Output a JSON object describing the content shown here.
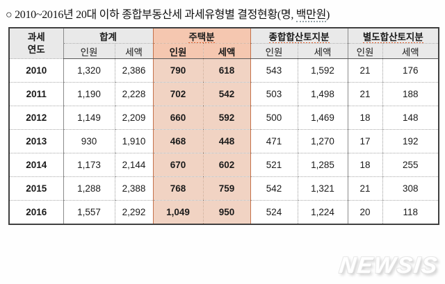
{
  "title": {
    "prefix": "○ 2010~2016년 20대 이하 종합부동산세 과세유형별 결정현황(명, ",
    "underlined": "백만원",
    "suffix": ")"
  },
  "watermark": "NEWSIS",
  "colors": {
    "highlight_header": "#f5c7b0",
    "highlight_cell": "#f1d3c3",
    "highlight_border": "#c4714a",
    "header_gray": "#e9e9e9",
    "table_border": "#3f3f3f",
    "spellcheck_red": "#dd5a28"
  },
  "table": {
    "year_header_line1": "과세",
    "year_header_line2": "연도",
    "groups": [
      {
        "label": "합계",
        "highlighted": false
      },
      {
        "label": "주택분",
        "highlighted": true
      },
      {
        "label": "종합합산토지분",
        "highlighted": false
      },
      {
        "label": "별도합산토지분",
        "highlighted": false
      }
    ],
    "subheaders": [
      "인원",
      "세액"
    ],
    "rows": [
      {
        "year": "2010",
        "values": [
          "1,320",
          "2,386",
          "790",
          "618",
          "543",
          "1,592",
          "21",
          "176"
        ]
      },
      {
        "year": "2011",
        "values": [
          "1,190",
          "2,228",
          "702",
          "542",
          "503",
          "1,498",
          "21",
          "188"
        ]
      },
      {
        "year": "2012",
        "values": [
          "1,149",
          "2,209",
          "660",
          "592",
          "500",
          "1,469",
          "18",
          "148"
        ]
      },
      {
        "year": "2013",
        "values": [
          "930",
          "1,910",
          "468",
          "448",
          "471",
          "1,270",
          "17",
          "192"
        ]
      },
      {
        "year": "2014",
        "values": [
          "1,173",
          "2,144",
          "670",
          "602",
          "521",
          "1,285",
          "18",
          "255"
        ]
      },
      {
        "year": "2015",
        "values": [
          "1,288",
          "2,388",
          "768",
          "759",
          "542",
          "1,321",
          "21",
          "308"
        ]
      },
      {
        "year": "2016",
        "values": [
          "1,557",
          "2,292",
          "1,049",
          "950",
          "524",
          "1,224",
          "20",
          "118"
        ]
      }
    ]
  },
  "chart_data": {
    "type": "table",
    "title": "2010~2016년 20대 이하 종합부동산세 과세유형별 결정현황(명, 백만원)",
    "columns": [
      "과세연도",
      "합계 인원",
      "합계 세액",
      "주택분 인원",
      "주택분 세액",
      "종합합산토지분 인원",
      "종합합산토지분 세액",
      "별도합산토지분 인원",
      "별도합산토지분 세액"
    ],
    "rows": [
      [
        2010,
        1320,
        2386,
        790,
        618,
        543,
        1592,
        21,
        176
      ],
      [
        2011,
        1190,
        2228,
        702,
        542,
        503,
        1498,
        21,
        188
      ],
      [
        2012,
        1149,
        2209,
        660,
        592,
        500,
        1469,
        18,
        148
      ],
      [
        2013,
        930,
        1910,
        468,
        448,
        471,
        1270,
        17,
        192
      ],
      [
        2014,
        1173,
        2144,
        670,
        602,
        521,
        1285,
        18,
        255
      ],
      [
        2015,
        1288,
        2388,
        768,
        759,
        542,
        1321,
        21,
        308
      ],
      [
        2016,
        1557,
        2292,
        1049,
        950,
        524,
        1224,
        20,
        118
      ]
    ]
  }
}
